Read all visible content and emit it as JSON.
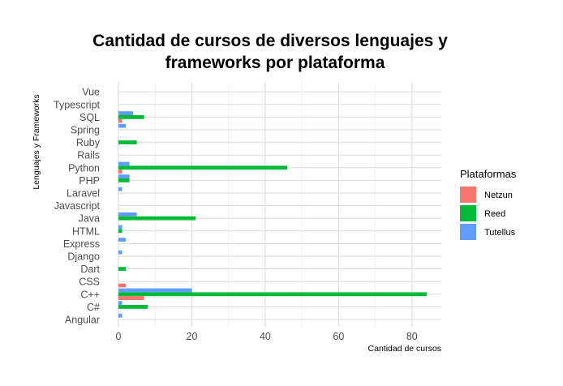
{
  "chart_data": {
    "type": "bar",
    "orientation": "horizontal",
    "title_lines": [
      "Cantidad de cursos de diversos lenguajes y",
      "frameworks por plataforma"
    ],
    "xlabel": "Cantidad de cursos",
    "ylabel": "Lenguajes y Frameworks",
    "xlim": [
      0,
      88
    ],
    "x_ticks": [
      "0",
      "20",
      "40",
      "60",
      "80"
    ],
    "categories": [
      "Angular",
      "C#",
      "C++",
      "CSS",
      "Dart",
      "Django",
      "Express",
      "HTML",
      "Java",
      "Javascript",
      "Laravel",
      "PHP",
      "Python",
      "Rails",
      "Ruby",
      "Spring",
      "SQL",
      "Typescript",
      "Vue"
    ],
    "series": [
      {
        "name": "Netzun",
        "color": "#F8766D",
        "values": [
          0,
          0,
          7,
          2,
          0,
          0,
          0,
          0,
          0,
          0,
          0,
          0,
          1,
          0,
          0,
          0,
          1,
          0,
          0
        ]
      },
      {
        "name": "Reed",
        "color": "#00BA38",
        "values": [
          0,
          8,
          84,
          0,
          2,
          0,
          0,
          1,
          21,
          0,
          0,
          3,
          46,
          0,
          5,
          0,
          7,
          0,
          0
        ]
      },
      {
        "name": "Tutellus",
        "color": "#619CFF",
        "values": [
          1,
          1,
          20,
          0,
          0,
          1,
          2,
          1,
          5,
          0,
          1,
          3,
          3,
          0,
          0,
          2,
          4,
          0,
          0
        ]
      }
    ],
    "grid": true,
    "legend_title": "Plataformas",
    "legend_position": "right"
  }
}
